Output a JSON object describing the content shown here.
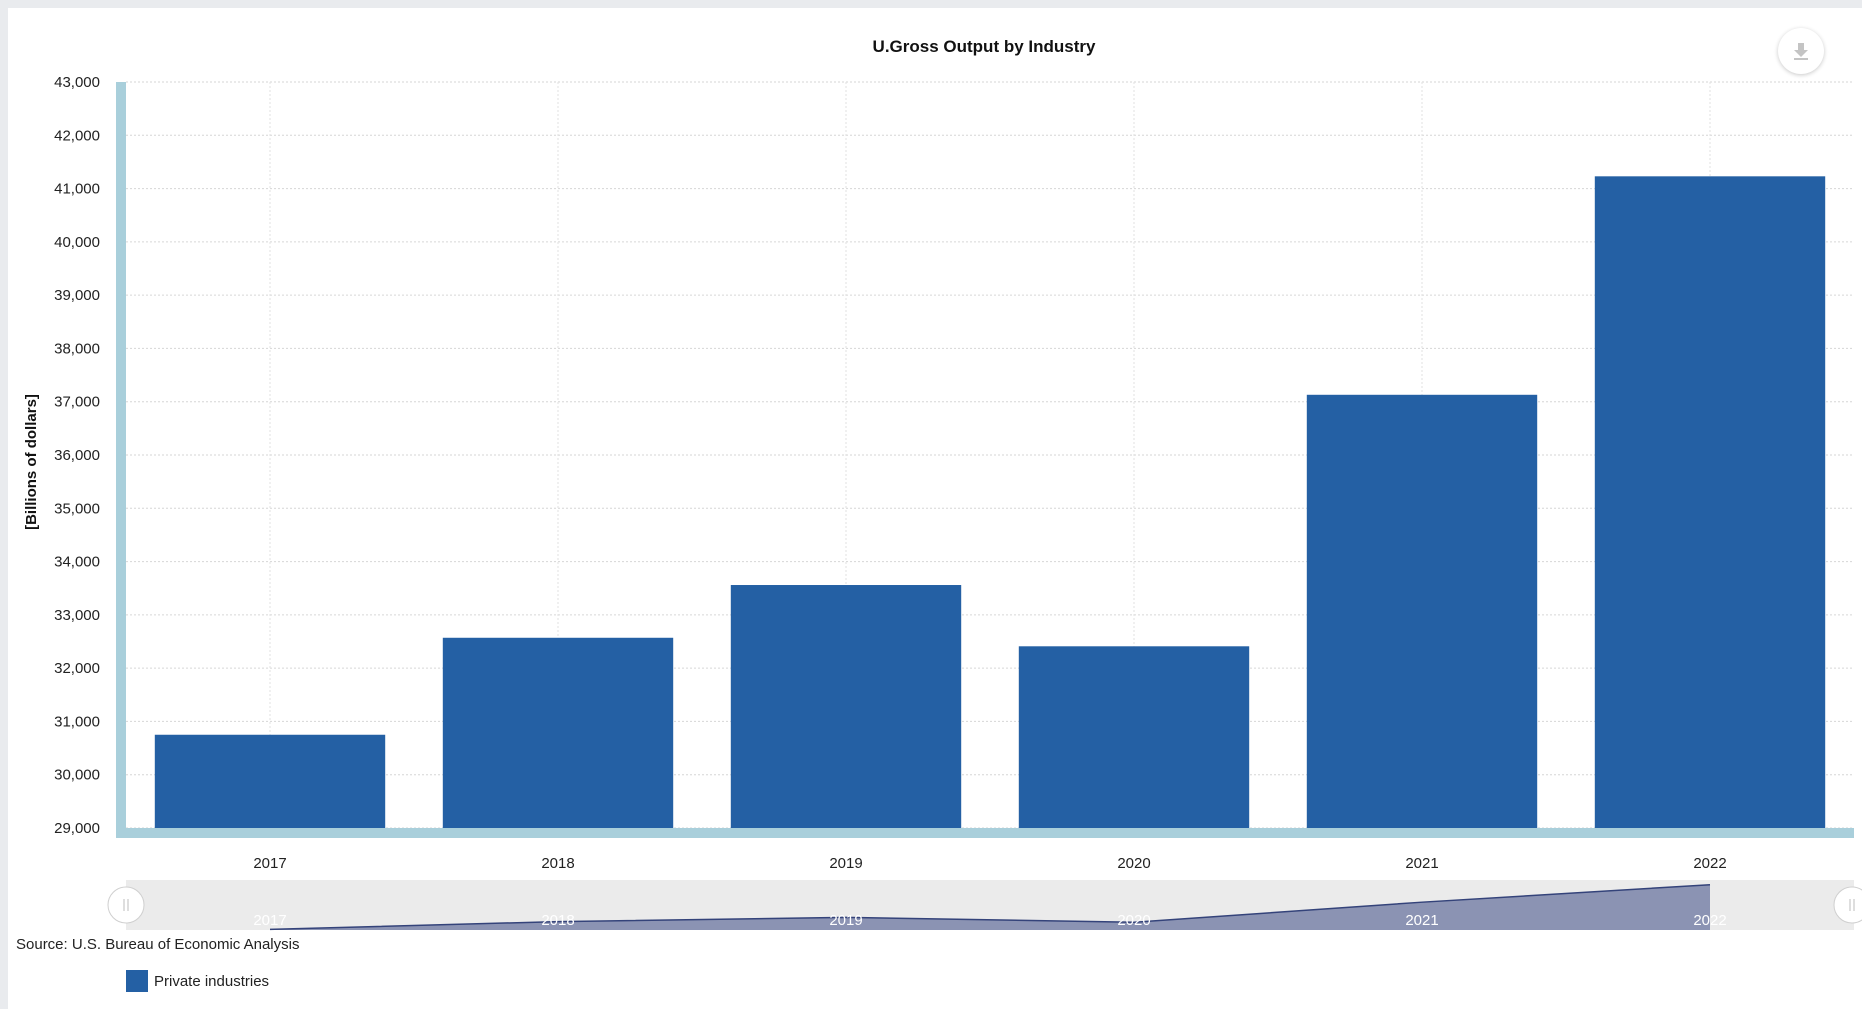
{
  "chart_data": {
    "type": "bar",
    "title": "U.Gross Output by Industry",
    "xlabel": "",
    "ylabel": "[Billions of dollars]",
    "categories": [
      "2017",
      "2018",
      "2019",
      "2020",
      "2021",
      "2022"
    ],
    "series": [
      {
        "name": "Private industries",
        "values": [
          30750,
          32570,
          33560,
          32410,
          37130,
          41230
        ],
        "color": "#2460a4"
      }
    ],
    "ylim": [
      29000,
      43000
    ],
    "yticks": [
      29000,
      30000,
      31000,
      32000,
      33000,
      34000,
      35000,
      36000,
      37000,
      38000,
      39000,
      40000,
      41000,
      42000,
      43000
    ],
    "ytick_labels": [
      "29,000",
      "30,000",
      "31,000",
      "32,000",
      "33,000",
      "34,000",
      "35,000",
      "36,000",
      "37,000",
      "38,000",
      "39,000",
      "40,000",
      "41,000",
      "42,000",
      "43,000"
    ],
    "grid": true,
    "legend_position": "bottom-left",
    "axis_color": "#a9cfdb",
    "navigator": {
      "labels": [
        "2017",
        "2018",
        "2019",
        "2020",
        "2021",
        "2022"
      ],
      "fill_color": "#8b93b3",
      "line_color": "#34437a"
    }
  },
  "source": "Source: U.S. Bureau of Economic Analysis",
  "download_icon": "download-icon"
}
